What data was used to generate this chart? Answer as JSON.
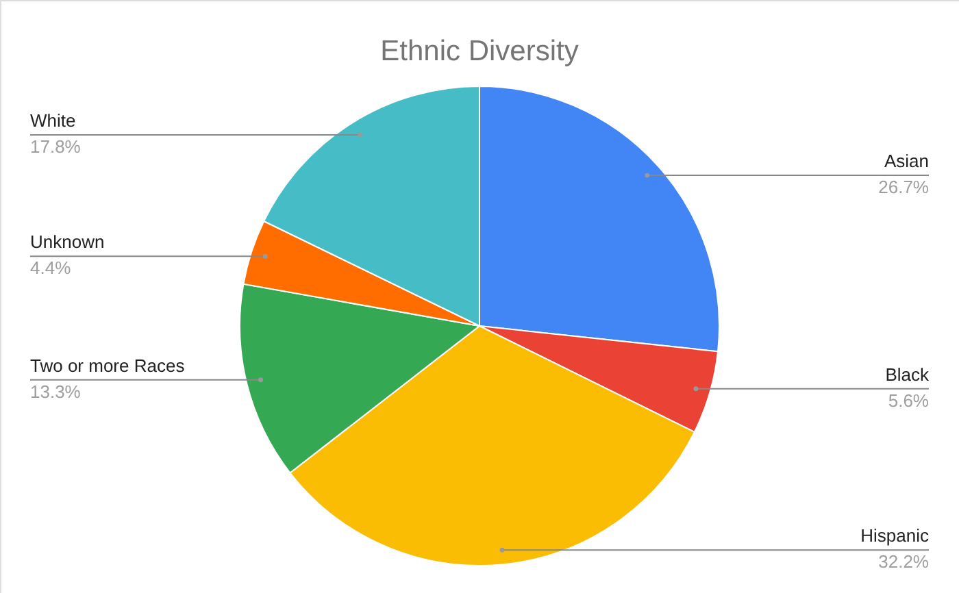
{
  "chart_data": {
    "type": "pie",
    "title": "Ethnic Diversity",
    "categories": [
      "Asian",
      "Black",
      "Hispanic",
      "Two or more Races",
      "Unknown",
      "White"
    ],
    "values": [
      26.7,
      5.6,
      32.2,
      13.3,
      4.4,
      17.8
    ],
    "value_labels": [
      "26.7%",
      "5.6%",
      "32.2%",
      "13.3%",
      "4.4%",
      "17.8%"
    ],
    "colors": [
      "#4285f4",
      "#ea4335",
      "#fbbc04",
      "#34a853",
      "#ff6d01",
      "#46bdc6"
    ]
  }
}
